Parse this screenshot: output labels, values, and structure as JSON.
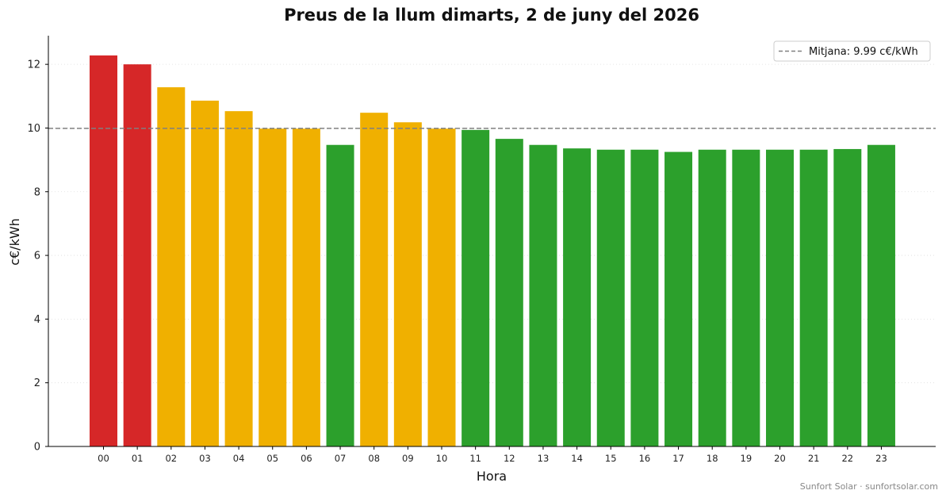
{
  "chart_data": {
    "type": "bar",
    "title": "Preus de la llum dimarts, 2 de juny del 2026",
    "xlabel": "Hora",
    "ylabel": "c€/kWh",
    "categories": [
      "00",
      "01",
      "02",
      "03",
      "04",
      "05",
      "06",
      "07",
      "08",
      "09",
      "10",
      "11",
      "12",
      "13",
      "14",
      "15",
      "16",
      "17",
      "18",
      "19",
      "20",
      "21",
      "22",
      "23"
    ],
    "values": [
      12.28,
      12.0,
      11.28,
      10.86,
      10.53,
      9.98,
      9.98,
      9.47,
      10.48,
      10.18,
      9.98,
      9.94,
      9.66,
      9.47,
      9.36,
      9.32,
      9.32,
      9.25,
      9.32,
      9.32,
      9.32,
      9.32,
      9.34,
      9.47
    ],
    "levels": [
      "high",
      "high",
      "mid",
      "mid",
      "mid",
      "mid",
      "mid",
      "low",
      "mid",
      "mid",
      "mid",
      "low",
      "low",
      "low",
      "low",
      "low",
      "low",
      "low",
      "low",
      "low",
      "low",
      "low",
      "low",
      "low"
    ],
    "level_colors": {
      "high": "#d62728",
      "mid": "#f0b000",
      "low": "#2ca02c"
    },
    "ylim": [
      0,
      12.9
    ],
    "yticks": [
      0,
      2,
      4,
      6,
      8,
      10,
      12
    ],
    "grid": "y-dotted",
    "average": {
      "value": 9.99,
      "label": "Mitjana: 9.99 c€/kWh",
      "color": "#808080"
    },
    "legend_position": "top-right"
  },
  "footer": "Sunfort Solar · sunfortsolar.com"
}
